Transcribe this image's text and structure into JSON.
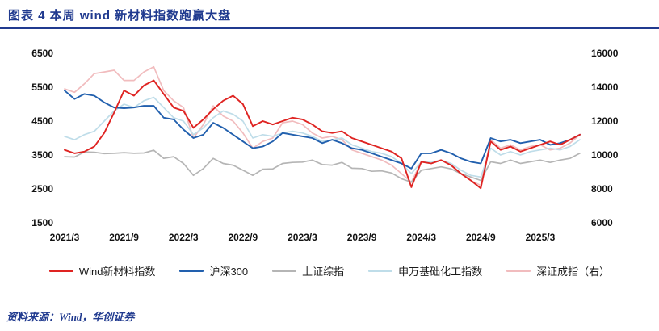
{
  "header": {
    "title": "图表 4  本周 wind 新材料指数跑赢大盘"
  },
  "footer": {
    "source": "资料来源：Wind，华创证券"
  },
  "colors": {
    "accent_blue": "#203a8f",
    "series_red": "#df2422",
    "series_blue": "#2260ae",
    "series_gray": "#b5b5b5",
    "series_lightblue": "#bfdde9",
    "series_pink": "#f1bcbe"
  },
  "chart_data": {
    "type": "line",
    "title": "本周wind新材料指数跑赢大盘",
    "grid": false,
    "legend_position": "bottom",
    "n_points": 53,
    "x_start": "2021/3",
    "x_end": "2025/7",
    "x_tick_labels": [
      "2021/3",
      "2021/9",
      "2022/3",
      "2022/9",
      "2023/3",
      "2023/9",
      "2024/3",
      "2024/9",
      "2025/3"
    ],
    "x_tick_indices": [
      0,
      6,
      12,
      18,
      24,
      30,
      36,
      42,
      48
    ],
    "y_left": {
      "min": 1500,
      "max": 6500,
      "ticks": [
        1500,
        2500,
        3500,
        4500,
        5500,
        6500
      ]
    },
    "y_right": {
      "min": 6000,
      "max": 16000,
      "ticks": [
        6000,
        8000,
        10000,
        12000,
        14000,
        16000
      ]
    },
    "series": [
      {
        "id": "wind-new-materials",
        "name": "Wind新材料指数",
        "color": "#df2422",
        "axis": "left",
        "width": 1.9,
        "values": [
          3650,
          3550,
          3600,
          3750,
          4150,
          4750,
          5400,
          5250,
          5550,
          5700,
          5300,
          4900,
          4800,
          4300,
          4550,
          4850,
          5100,
          5250,
          5000,
          4350,
          4500,
          4400,
          4500,
          4600,
          4550,
          4400,
          4200,
          4150,
          4200,
          4000,
          3900,
          3800,
          3700,
          3600,
          3400,
          2550,
          3300,
          3250,
          3350,
          3200,
          2950,
          2750,
          2520,
          3900,
          3650,
          3750,
          3600,
          3700,
          3800,
          3900,
          3800,
          3950,
          4100
        ]
      },
      {
        "id": "csi300",
        "name": "沪深300",
        "color": "#2260ae",
        "axis": "left",
        "width": 1.9,
        "values": [
          5400,
          5150,
          5300,
          5250,
          5050,
          4900,
          4880,
          4900,
          4950,
          4950,
          4600,
          4550,
          4250,
          4000,
          4100,
          4450,
          4300,
          4100,
          3900,
          3700,
          3750,
          3900,
          4150,
          4100,
          4050,
          4000,
          3850,
          3950,
          3850,
          3700,
          3650,
          3550,
          3450,
          3350,
          3250,
          3100,
          3550,
          3550,
          3650,
          3550,
          3400,
          3300,
          3250,
          4000,
          3900,
          3950,
          3850,
          3900,
          3950,
          3800,
          3850,
          3950,
          4100
        ]
      },
      {
        "id": "sse-composite",
        "name": "上证综指",
        "color": "#b5b5b5",
        "axis": "left",
        "width": 1.7,
        "values": [
          3450,
          3440,
          3590,
          3580,
          3540,
          3550,
          3570,
          3550,
          3560,
          3640,
          3400,
          3450,
          3250,
          2900,
          3100,
          3400,
          3250,
          3200,
          3050,
          2900,
          3080,
          3090,
          3250,
          3280,
          3290,
          3350,
          3220,
          3200,
          3280,
          3110,
          3100,
          3020,
          3030,
          2970,
          2800,
          2700,
          3050,
          3100,
          3150,
          3090,
          2950,
          2850,
          2750,
          3300,
          3250,
          3350,
          3250,
          3300,
          3350,
          3280,
          3350,
          3400,
          3550
        ]
      },
      {
        "id": "sw-basic-chemicals",
        "name": "申万基础化工指数",
        "color": "#bfdde9",
        "axis": "left",
        "width": 1.7,
        "values": [
          4050,
          3950,
          4100,
          4200,
          4500,
          4800,
          5000,
          4900,
          5100,
          5200,
          4900,
          4600,
          4500,
          4100,
          4300,
          4600,
          4800,
          4700,
          4500,
          4000,
          4100,
          4050,
          4150,
          4200,
          4150,
          4050,
          3900,
          3950,
          4000,
          3800,
          3700,
          3600,
          3550,
          3450,
          3250,
          2950,
          3300,
          3280,
          3350,
          3250,
          3050,
          2900,
          2850,
          3700,
          3500,
          3600,
          3500,
          3600,
          3650,
          3700,
          3650,
          3750,
          3950
        ]
      },
      {
        "id": "szse-component",
        "name": "深证成指（右）",
        "color": "#f1bcbe",
        "axis": "right",
        "width": 1.7,
        "values": [
          13900,
          13700,
          14200,
          14800,
          14900,
          15000,
          14400,
          14400,
          14900,
          15200,
          13800,
          13200,
          12800,
          11000,
          11800,
          12900,
          12300,
          12000,
          11300,
          10400,
          10800,
          11000,
          11900,
          12000,
          11800,
          11300,
          11000,
          11100,
          10900,
          10300,
          10100,
          9900,
          9700,
          9400,
          8900,
          8400,
          9600,
          9500,
          9700,
          9400,
          8900,
          8500,
          8200,
          10900,
          10400,
          10600,
          10300,
          10500,
          10600,
          10300,
          10400,
          10700,
          11200
        ]
      }
    ]
  }
}
